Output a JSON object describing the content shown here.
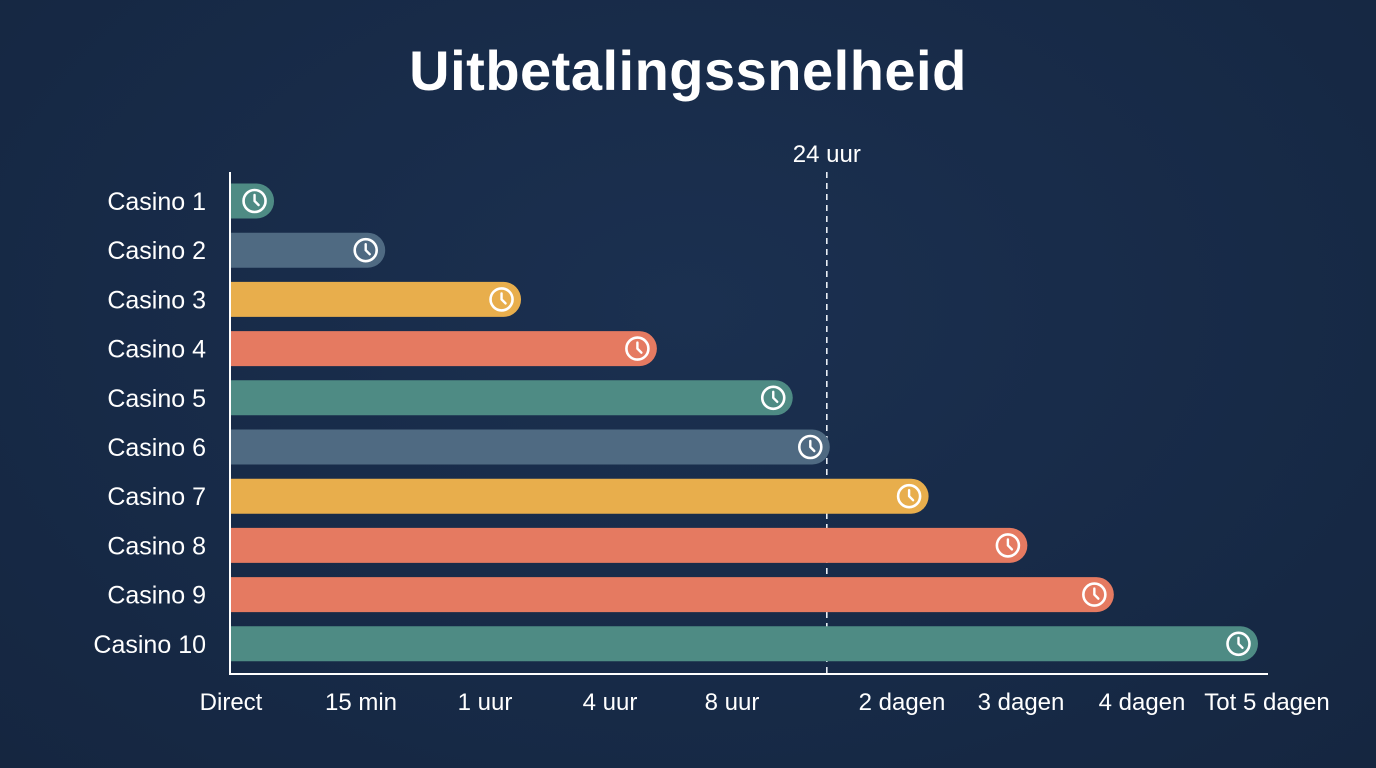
{
  "chart_data": {
    "type": "bar",
    "orientation": "horizontal",
    "title": "Uitbetalingssnelheid",
    "xlabel": "",
    "ylabel": "",
    "categories": [
      "Casino 1",
      "Casino 2",
      "Casino 3",
      "Casino 4",
      "Casino 5",
      "Casino 6",
      "Casino 7",
      "Casino 8",
      "Casino 9",
      "Casino 10"
    ],
    "x_ticks": [
      "Direct",
      "15 min",
      "1 uur",
      "4 uur",
      "8 uur",
      "2 dagen",
      "3 dagen",
      "4 dagen",
      "Tot 5 dagen"
    ],
    "x_tick_positions": [
      0,
      1,
      2,
      3,
      4,
      5,
      6,
      7,
      8
    ],
    "xlim": [
      0,
      8.2
    ],
    "values": [
      0.3,
      1.2,
      2.3,
      3.4,
      4.5,
      4.8,
      5.6,
      6.4,
      7.1,
      8.4
    ],
    "colors": [
      "#4e8b84",
      "#4f6a82",
      "#e8ae4c",
      "#e57a61",
      "#4e8b84",
      "#4f6a82",
      "#e8ae4c",
      "#e57a61",
      "#e57a61",
      "#4e8b84"
    ],
    "icon": "clock-icon",
    "reference_line": {
      "label": "24 uur",
      "x": 4.8,
      "style": "dashed"
    },
    "grid": false,
    "legend": "none"
  }
}
